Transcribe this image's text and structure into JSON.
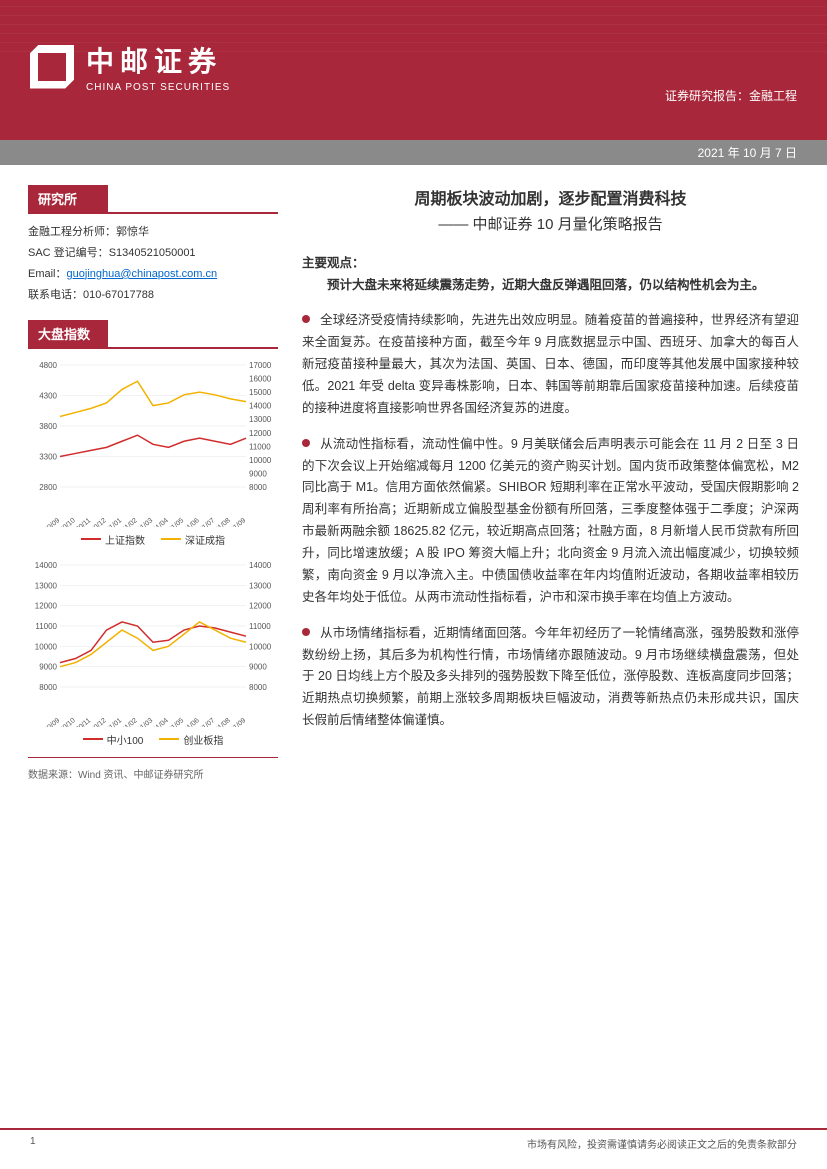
{
  "brand": {
    "cn": "中邮证券",
    "en": "CHINA POST SECURITIES"
  },
  "header": {
    "report_type": "证券研究报告：金融工程",
    "date": "2021 年 10 月 7 日"
  },
  "sidebar": {
    "research_title": "研究所",
    "analyst_label": "金融工程分析师：",
    "analyst_name": "郭惊华",
    "sac_label": "SAC 登记编号：",
    "sac_no": "S1340521050001",
    "email_label": "Email：",
    "email": "guojinghua@chinapost.com.cn",
    "phone_label": "联系电话：",
    "phone": "010-67017788",
    "index_title": "大盘指数",
    "chart1": {
      "type": "line",
      "x_labels": [
        "2020/09",
        "2020/10",
        "2020/11",
        "2020/12",
        "2021/01",
        "2021/02",
        "2021/03",
        "2021/04",
        "2021/05",
        "2021/06",
        "2021/07",
        "2021/08",
        "2021/09"
      ],
      "left_axis": {
        "min": 2800,
        "max": 4800,
        "step": 500,
        "ticks": [
          2800,
          3300,
          3800,
          4300,
          4800
        ]
      },
      "right_axis": {
        "min": 8000,
        "max": 17000,
        "step": 1000,
        "ticks": [
          8000,
          9000,
          10000,
          11000,
          12000,
          13000,
          14000,
          15000,
          16000,
          17000
        ]
      },
      "series": [
        {
          "name": "上证指数",
          "color": "#d02c2c",
          "axis": "left",
          "values": [
            3300,
            3350,
            3400,
            3450,
            3550,
            3650,
            3500,
            3450,
            3550,
            3600,
            3550,
            3500,
            3600
          ]
        },
        {
          "name": "深证成指",
          "color": "#f2b200",
          "axis": "right",
          "values": [
            13200,
            13500,
            13800,
            14200,
            15200,
            15800,
            14000,
            14200,
            14800,
            15000,
            14800,
            14500,
            14300
          ]
        }
      ],
      "grid_color": "#e5e5e5",
      "axis_fontsize": 8
    },
    "chart2": {
      "type": "line",
      "x_labels": [
        "2020/09",
        "2020/10",
        "2020/11",
        "2020/12",
        "2021/01",
        "2021/02",
        "2021/03",
        "2021/04",
        "2021/05",
        "2021/06",
        "2021/07",
        "2021/08",
        "2021/09"
      ],
      "left_axis": {
        "min": 8000,
        "max": 14000,
        "step": 1000,
        "ticks": [
          8000,
          9000,
          10000,
          11000,
          12000,
          13000,
          14000
        ]
      },
      "right_axis": {
        "min": 8000,
        "max": 14000,
        "step": 1000,
        "ticks": [
          8000,
          9000,
          10000,
          11000,
          12000,
          13000,
          14000
        ]
      },
      "series": [
        {
          "name": "中小100",
          "color": "#d02c2c",
          "axis": "left",
          "values": [
            9200,
            9400,
            9800,
            10800,
            11200,
            11000,
            10200,
            10300,
            10800,
            11000,
            10900,
            10700,
            10500
          ]
        },
        {
          "name": "创业板指",
          "color": "#f2b200",
          "axis": "right",
          "values": [
            9000,
            9200,
            9600,
            10200,
            10800,
            10400,
            9800,
            10000,
            10600,
            11200,
            10800,
            10400,
            10200
          ]
        }
      ],
      "grid_color": "#e5e5e5",
      "axis_fontsize": 8
    },
    "data_source": "数据来源：Wind 资讯、中邮证券研究所"
  },
  "main": {
    "title": "周期板块波动加剧，逐步配置消费科技",
    "subtitle": "—— 中邮证券 10 月量化策略报告",
    "keypoints_label": "主要观点：",
    "keypoints_lead": "预计大盘未来将延续震荡走势，近期大盘反弹遇阻回落，仍以结构性机会为主。",
    "paras": [
      "全球经济受疫情持续影响，先进先出效应明显。随着疫苗的普遍接种，世界经济有望迎来全面复苏。在疫苗接种方面，截至今年 9 月底数据显示中国、西班牙、加拿大的每百人新冠疫苗接种量最大，其次为法国、英国、日本、德国，而印度等其他发展中国家接种较低。2021 年受 delta 变异毒株影响，日本、韩国等前期靠后国家疫苗接种加速。后续疫苗的接种进度将直接影响世界各国经济复苏的进度。",
      "从流动性指标看，流动性偏中性。9 月美联储会后声明表示可能会在 11 月 2 日至 3 日的下次会议上开始缩减每月 1200 亿美元的资产购买计划。国内货币政策整体偏宽松，M2 同比高于 M1。信用方面依然偏紧。SHIBOR 短期利率在正常水平波动，受国庆假期影响 2 周利率有所抬高；近期新成立偏股型基金份额有所回落，三季度整体强于二季度；沪深两市最新两融余额 18625.82 亿元，较近期高点回落；社融方面，8 月新增人民币贷款有所回升，同比增速放缓；A 股 IPO 筹资大幅上升；北向资金 9 月流入流出幅度减少，切换较频繁，南向资金 9 月以净流入主。中债国债收益率在年内均值附近波动，各期收益率相较历史各年均处于低位。从两市流动性指标看，沪市和深市换手率在均值上方波动。",
      "从市场情绪指标看，近期情绪面回落。今年年初经历了一轮情绪高涨，强势股数和涨停数纷纷上扬，其后多为机构性行情，市场情绪亦跟随波动。9 月市场继续横盘震荡，但处于 20 日均线上方个股及多头排列的强势股数下降至低位，涨停股数、连板高度同步回落；近期热点切换频繁，前期上涨较多周期板块巨幅波动，消费等新热点仍未形成共识，国庆长假前后情绪整体偏谨慎。"
    ]
  },
  "footer": {
    "page": "1",
    "disclaimer": "市场有风险，投资需谨慎请务必阅读正文之后的免责条款部分"
  },
  "colors": {
    "brand": "#a8273a",
    "grey": "#8a8a8a",
    "link": "#0066cc"
  }
}
